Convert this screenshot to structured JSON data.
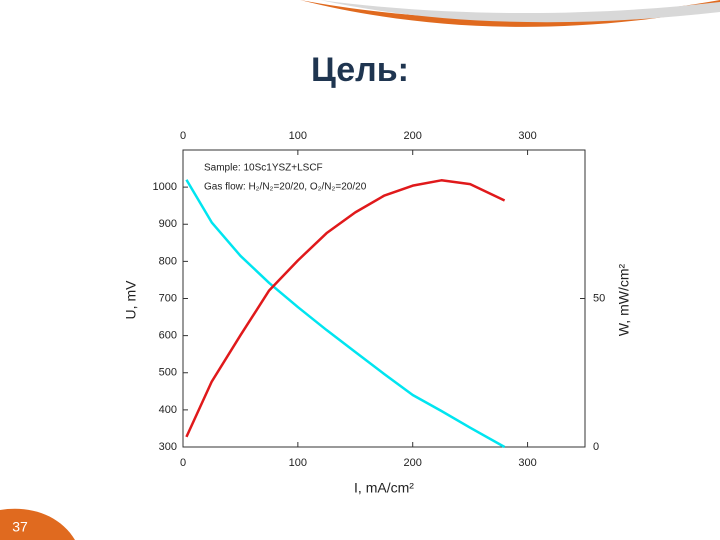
{
  "slide_title": "Цель:",
  "page_number": "37",
  "chart_data": {
    "type": "line",
    "x_label": "I, mA/cm²",
    "y_label": "U, mV",
    "y2_label": "W, mW/cm²",
    "annotations": [
      "Sample: 10Sc1YSZ+LSCF",
      "Gas flow: H₂/N₂=20/20, O₂/N₂=20/20"
    ],
    "x": [
      3,
      25,
      50,
      75,
      100,
      125,
      150,
      175,
      200,
      225,
      250,
      280
    ],
    "series": [
      {
        "name": "U",
        "color": "#00e5f0",
        "values": [
          1020,
          905,
          815,
          742,
          677,
          615,
          556,
          497,
          440,
          397,
          352,
          300
        ]
      },
      {
        "name": "W",
        "color": "#e0191b",
        "axis": "y2",
        "values": [
          3.4,
          22,
          37.6,
          52.7,
          62.8,
          72,
          79,
          84.6,
          88,
          89.8,
          88.5,
          83
        ]
      }
    ],
    "xlim": [
      0,
      350
    ],
    "xticks": [
      0,
      100,
      200,
      300
    ],
    "ylim": [
      300,
      1100
    ],
    "yticks": [
      300,
      400,
      500,
      600,
      700,
      800,
      900,
      1000
    ],
    "y2lim": [
      0,
      100
    ],
    "y2ticks": [
      0,
      50
    ]
  }
}
